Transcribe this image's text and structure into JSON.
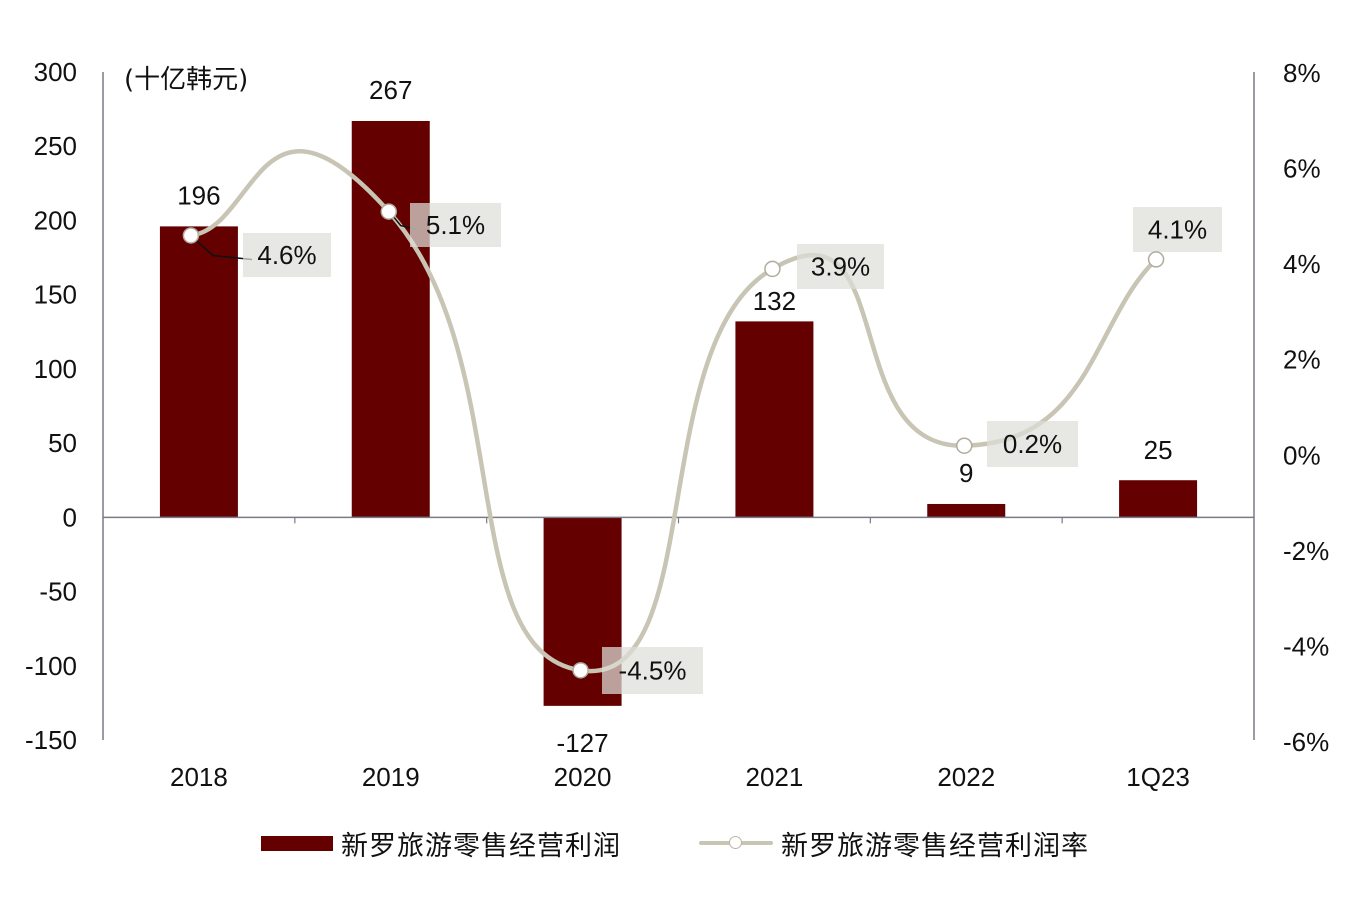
{
  "chart_data": {
    "type": "bar+line",
    "title": "",
    "unit_label": "(十亿韩元)",
    "categories": [
      "2018",
      "2019",
      "2020",
      "2021",
      "2022",
      "1Q23"
    ],
    "series": [
      {
        "name": "新罗旅游零售经营利润",
        "type": "bar",
        "axis": "left",
        "color": "#650000",
        "values": [
          196,
          267,
          -127,
          132,
          9,
          25
        ],
        "labels": [
          "196",
          "267",
          "-127",
          "132",
          "9",
          "25"
        ]
      },
      {
        "name": "新罗旅游零售经营利润率",
        "type": "line",
        "axis": "right",
        "color": "#c9c5b5",
        "values": [
          4.6,
          5.1,
          -4.5,
          3.9,
          0.2,
          4.1
        ],
        "labels": [
          "4.6%",
          "5.1%",
          "-4.5%",
          "3.9%",
          "0.2%",
          "4.1%"
        ]
      }
    ],
    "left_axis": {
      "ylim": [
        -150,
        300
      ],
      "ticks": [
        300,
        250,
        200,
        150,
        100,
        50,
        0,
        -50,
        -100,
        -150
      ],
      "tick_labels": [
        "300",
        "250",
        "200",
        "150",
        "100",
        "50",
        "0",
        "-50",
        "-100",
        "-150"
      ]
    },
    "right_axis": {
      "ylim": [
        -6,
        8
      ],
      "ticks": [
        8,
        6,
        4,
        2,
        0,
        -2,
        -4,
        -6
      ],
      "tick_labels": [
        "8%",
        "6%",
        "4%",
        "2%",
        "0%",
        "-2%",
        "-4%",
        "-6%"
      ]
    },
    "grid": false,
    "legend_position": "bottom"
  },
  "legend": {
    "bar_label": "新罗旅游零售经营利润",
    "line_label": "新罗旅游零售经营利润率"
  }
}
